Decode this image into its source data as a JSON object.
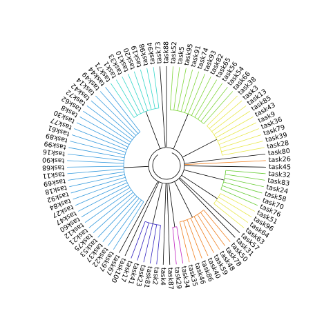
{
  "chart_data": {
    "type": "dendrogram",
    "leaves": [
      {
        "label": "task88",
        "color": "#000000"
      },
      {
        "label": "task52",
        "color": "#7fd63b"
      },
      {
        "label": "task5",
        "color": "#7fd63b"
      },
      {
        "label": "task95",
        "color": "#7fd63b"
      },
      {
        "label": "task91",
        "color": "#7fd63b"
      },
      {
        "label": "task74",
        "color": "#7fd63b"
      },
      {
        "label": "task93",
        "color": "#7fd63b"
      },
      {
        "label": "task82",
        "color": "#7fd63b"
      },
      {
        "label": "task65",
        "color": "#7fd63b"
      },
      {
        "label": "task56",
        "color": "#7fd63b"
      },
      {
        "label": "task54",
        "color": "#7fd63b"
      },
      {
        "label": "task66",
        "color": "#7fd63b"
      },
      {
        "label": "task38",
        "color": "#e8e84a"
      },
      {
        "label": "task3",
        "color": "#e8e84a"
      },
      {
        "label": "task13",
        "color": "#e8e84a"
      },
      {
        "label": "task85",
        "color": "#e8e84a"
      },
      {
        "label": "task43",
        "color": "#e8e84a"
      },
      {
        "label": "task9",
        "color": "#e8e84a"
      },
      {
        "label": "task36",
        "color": "#e8e84a"
      },
      {
        "label": "task79",
        "color": "#e8e84a"
      },
      {
        "label": "task39",
        "color": "#e8e84a"
      },
      {
        "label": "task28",
        "color": "#e8e84a"
      },
      {
        "label": "task80",
        "color": "#000000"
      },
      {
        "label": "task26",
        "color": "#f08020"
      },
      {
        "label": "task45",
        "color": "#000000"
      },
      {
        "label": "task32",
        "color": "#66cc33"
      },
      {
        "label": "task83",
        "color": "#66cc33"
      },
      {
        "label": "task24",
        "color": "#66cc33"
      },
      {
        "label": "task58",
        "color": "#66cc33"
      },
      {
        "label": "task70",
        "color": "#66cc33"
      },
      {
        "label": "task76",
        "color": "#66cc33"
      },
      {
        "label": "task51",
        "color": "#e8e84a"
      },
      {
        "label": "task96",
        "color": "#e8e84a"
      },
      {
        "label": "task64",
        "color": "#e8e84a"
      },
      {
        "label": "task63",
        "color": "#e8e84a"
      },
      {
        "label": "task57",
        "color": "#000000"
      },
      {
        "label": "task31",
        "color": "#000000"
      },
      {
        "label": "task50",
        "color": "#f08020"
      },
      {
        "label": "task78",
        "color": "#f08020"
      },
      {
        "label": "task48",
        "color": "#f08020"
      },
      {
        "label": "task59",
        "color": "#f08020"
      },
      {
        "label": "task40",
        "color": "#f08020"
      },
      {
        "label": "task86",
        "color": "#f08020"
      },
      {
        "label": "task46",
        "color": "#f08020"
      },
      {
        "label": "task35",
        "color": "#f08020"
      },
      {
        "label": "task34",
        "color": "#c020c0"
      },
      {
        "label": "task29",
        "color": "#c020c0"
      },
      {
        "label": "task87",
        "color": "#000000"
      },
      {
        "label": "task4",
        "color": "#000000"
      },
      {
        "label": "task2",
        "color": "#3020c0"
      },
      {
        "label": "task81",
        "color": "#3020c0"
      },
      {
        "label": "task23",
        "color": "#3020c0"
      },
      {
        "label": "task41",
        "color": "#3020c0"
      },
      {
        "label": "task17",
        "color": "#3020c0"
      },
      {
        "label": "task100",
        "color": "#000000"
      },
      {
        "label": "task67",
        "color": "#000000"
      },
      {
        "label": "task97",
        "color": "#3399dd"
      },
      {
        "label": "task22",
        "color": "#3399dd"
      },
      {
        "label": "task37",
        "color": "#3399dd"
      },
      {
        "label": "task53",
        "color": "#3399dd"
      },
      {
        "label": "task75",
        "color": "#3399dd"
      },
      {
        "label": "task21",
        "color": "#3399dd"
      },
      {
        "label": "task12",
        "color": "#3399dd"
      },
      {
        "label": "task60",
        "color": "#3399dd"
      },
      {
        "label": "task47",
        "color": "#3399dd"
      },
      {
        "label": "task27",
        "color": "#3399dd"
      },
      {
        "label": "task84",
        "color": "#3399dd"
      },
      {
        "label": "task92",
        "color": "#3399dd"
      },
      {
        "label": "task18",
        "color": "#3399dd"
      },
      {
        "label": "task69",
        "color": "#3399dd"
      },
      {
        "label": "task11",
        "color": "#3399dd"
      },
      {
        "label": "task68",
        "color": "#3399dd"
      },
      {
        "label": "task90",
        "color": "#3399dd"
      },
      {
        "label": "task16",
        "color": "#3399dd"
      },
      {
        "label": "task99",
        "color": "#3399dd"
      },
      {
        "label": "task89",
        "color": "#3399dd"
      },
      {
        "label": "task61",
        "color": "#3399dd"
      },
      {
        "label": "task77",
        "color": "#3399dd"
      },
      {
        "label": "task30",
        "color": "#3399dd"
      },
      {
        "label": "task8",
        "color": "#3399dd"
      },
      {
        "label": "task62",
        "color": "#3399dd"
      },
      {
        "label": "task72",
        "color": "#3399dd"
      },
      {
        "label": "task42",
        "color": "#3399dd"
      },
      {
        "label": "task14",
        "color": "#3399dd"
      },
      {
        "label": "task49",
        "color": "#3399dd"
      },
      {
        "label": "task44",
        "color": "#3399dd"
      },
      {
        "label": "task71",
        "color": "#33d6c8"
      },
      {
        "label": "task1",
        "color": "#33d6c8"
      },
      {
        "label": "task33",
        "color": "#33d6c8"
      },
      {
        "label": "task10",
        "color": "#33d6c8"
      },
      {
        "label": "task20",
        "color": "#33d6c8"
      },
      {
        "label": "task19",
        "color": "#33d6c8"
      },
      {
        "label": "task98",
        "color": "#33d6c8"
      },
      {
        "label": "task94",
        "color": "#33d6c8"
      },
      {
        "label": "task73",
        "color": "#000000"
      }
    ]
  }
}
